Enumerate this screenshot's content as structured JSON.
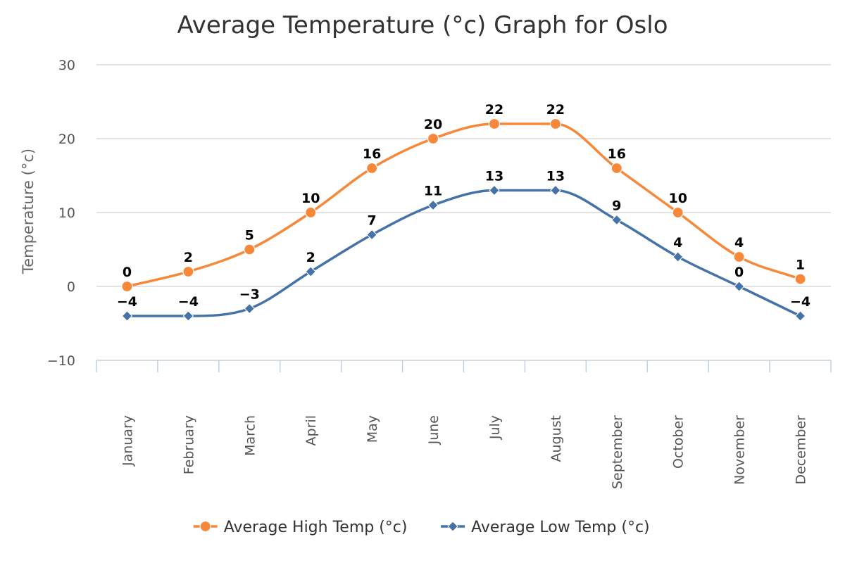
{
  "chart_data": {
    "type": "line",
    "title": "Average Temperature (°c) Graph for Oslo",
    "ylabel": "Temperature (°c)",
    "xlabel": "",
    "ylim": [
      -10,
      30
    ],
    "yticks": [
      -10,
      0,
      10,
      20,
      30
    ],
    "grid": true,
    "legend_position": "bottom",
    "categories": [
      "January",
      "February",
      "March",
      "April",
      "May",
      "June",
      "July",
      "August",
      "September",
      "October",
      "November",
      "December"
    ],
    "series": [
      {
        "name": "Average High Temp (°c)",
        "color": "#f7883a",
        "marker": "circle",
        "values": [
          0,
          2,
          5,
          10,
          16,
          20,
          22,
          22,
          16,
          10,
          4,
          1
        ]
      },
      {
        "name": "Average Low Temp (°c)",
        "color": "#4572a7",
        "marker": "diamond",
        "values": [
          -4,
          -4,
          -3,
          2,
          7,
          11,
          13,
          13,
          9,
          4,
          0,
          -4
        ]
      }
    ]
  }
}
